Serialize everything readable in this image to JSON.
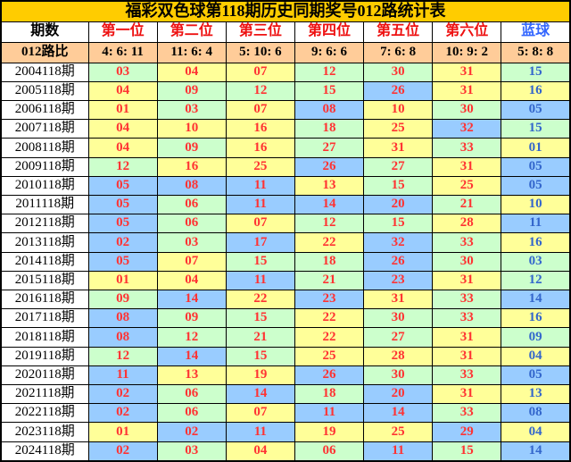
{
  "chart_data": {
    "type": "table",
    "title": "福彩双色球第118期历史同期奖号012路统计表",
    "columns": [
      "期数",
      "第一位",
      "第二位",
      "第三位",
      "第四位",
      "第五位",
      "第六位",
      "蓝球"
    ],
    "ratio": {
      "label": "012路比",
      "values": [
        "4: 6: 11",
        "11: 6: 4",
        "5: 10: 6",
        "9: 6: 6",
        "7: 6: 8",
        "10: 9: 2",
        "5: 8: 8"
      ]
    },
    "rows": [
      {
        "period": "2004118期",
        "reds": [
          "03",
          "04",
          "07",
          "12",
          "30",
          "31"
        ],
        "blue": "15"
      },
      {
        "period": "2005118期",
        "reds": [
          "04",
          "09",
          "12",
          "15",
          "26",
          "31"
        ],
        "blue": "16"
      },
      {
        "period": "2006118期",
        "reds": [
          "01",
          "03",
          "07",
          "08",
          "10",
          "30"
        ],
        "blue": "05"
      },
      {
        "period": "2007118期",
        "reds": [
          "04",
          "10",
          "16",
          "18",
          "25",
          "32"
        ],
        "blue": "15"
      },
      {
        "period": "2008118期",
        "reds": [
          "04",
          "09",
          "16",
          "27",
          "31",
          "33"
        ],
        "blue": "01"
      },
      {
        "period": "2009118期",
        "reds": [
          "12",
          "16",
          "25",
          "26",
          "27",
          "31"
        ],
        "blue": "05"
      },
      {
        "period": "2010118期",
        "reds": [
          "05",
          "08",
          "11",
          "13",
          "15",
          "25"
        ],
        "blue": "05"
      },
      {
        "period": "2011118期",
        "reds": [
          "05",
          "06",
          "11",
          "14",
          "20",
          "21"
        ],
        "blue": "10"
      },
      {
        "period": "2012118期",
        "reds": [
          "05",
          "06",
          "07",
          "12",
          "15",
          "28"
        ],
        "blue": "11"
      },
      {
        "period": "2013118期",
        "reds": [
          "02",
          "03",
          "17",
          "22",
          "32",
          "33"
        ],
        "blue": "16"
      },
      {
        "period": "2014118期",
        "reds": [
          "05",
          "07",
          "15",
          "18",
          "26",
          "30"
        ],
        "blue": "03"
      },
      {
        "period": "2015118期",
        "reds": [
          "01",
          "04",
          "11",
          "21",
          "23",
          "31"
        ],
        "blue": "12"
      },
      {
        "period": "2016118期",
        "reds": [
          "09",
          "14",
          "22",
          "23",
          "31",
          "33"
        ],
        "blue": "14"
      },
      {
        "period": "2017118期",
        "reds": [
          "08",
          "09",
          "15",
          "22",
          "30",
          "33"
        ],
        "blue": "16"
      },
      {
        "period": "2018118期",
        "reds": [
          "08",
          "12",
          "21",
          "22",
          "27",
          "31"
        ],
        "blue": "09"
      },
      {
        "period": "2019118期",
        "reds": [
          "12",
          "14",
          "15",
          "25",
          "28",
          "31"
        ],
        "blue": "04"
      },
      {
        "period": "2020118期",
        "reds": [
          "11",
          "13",
          "19",
          "26",
          "30",
          "33"
        ],
        "blue": "05"
      },
      {
        "period": "2021118期",
        "reds": [
          "02",
          "06",
          "14",
          "18",
          "20",
          "31"
        ],
        "blue": "13"
      },
      {
        "period": "2022118期",
        "reds": [
          "02",
          "06",
          "07",
          "11",
          "14",
          "33"
        ],
        "blue": "08"
      },
      {
        "period": "2023118期",
        "reds": [
          "01",
          "02",
          "11",
          "19",
          "25",
          "29"
        ],
        "blue": "04"
      },
      {
        "period": "2024118期",
        "reds": [
          "02",
          "03",
          "04",
          "06",
          "11",
          "15"
        ],
        "blue": "14"
      }
    ],
    "color_rule": "cell background by ball value mod 3: 0路→green, 1路→yellow, 2路→blue",
    "colors": {
      "title_bg": "#ffcc00",
      "header_bg": "#ffffff",
      "ratio_bg": "#ffcc99",
      "road0_bg": "#ccffcc",
      "road1_bg": "#ffff99",
      "road2_bg": "#99ccff",
      "red_ball_text": "#ff3333",
      "blue_ball_text": "#3366cc",
      "header_red_text": "#ee1111",
      "header_blue_text": "#3366ff"
    },
    "layout": {
      "grid": "on",
      "legend_position": "none"
    }
  }
}
